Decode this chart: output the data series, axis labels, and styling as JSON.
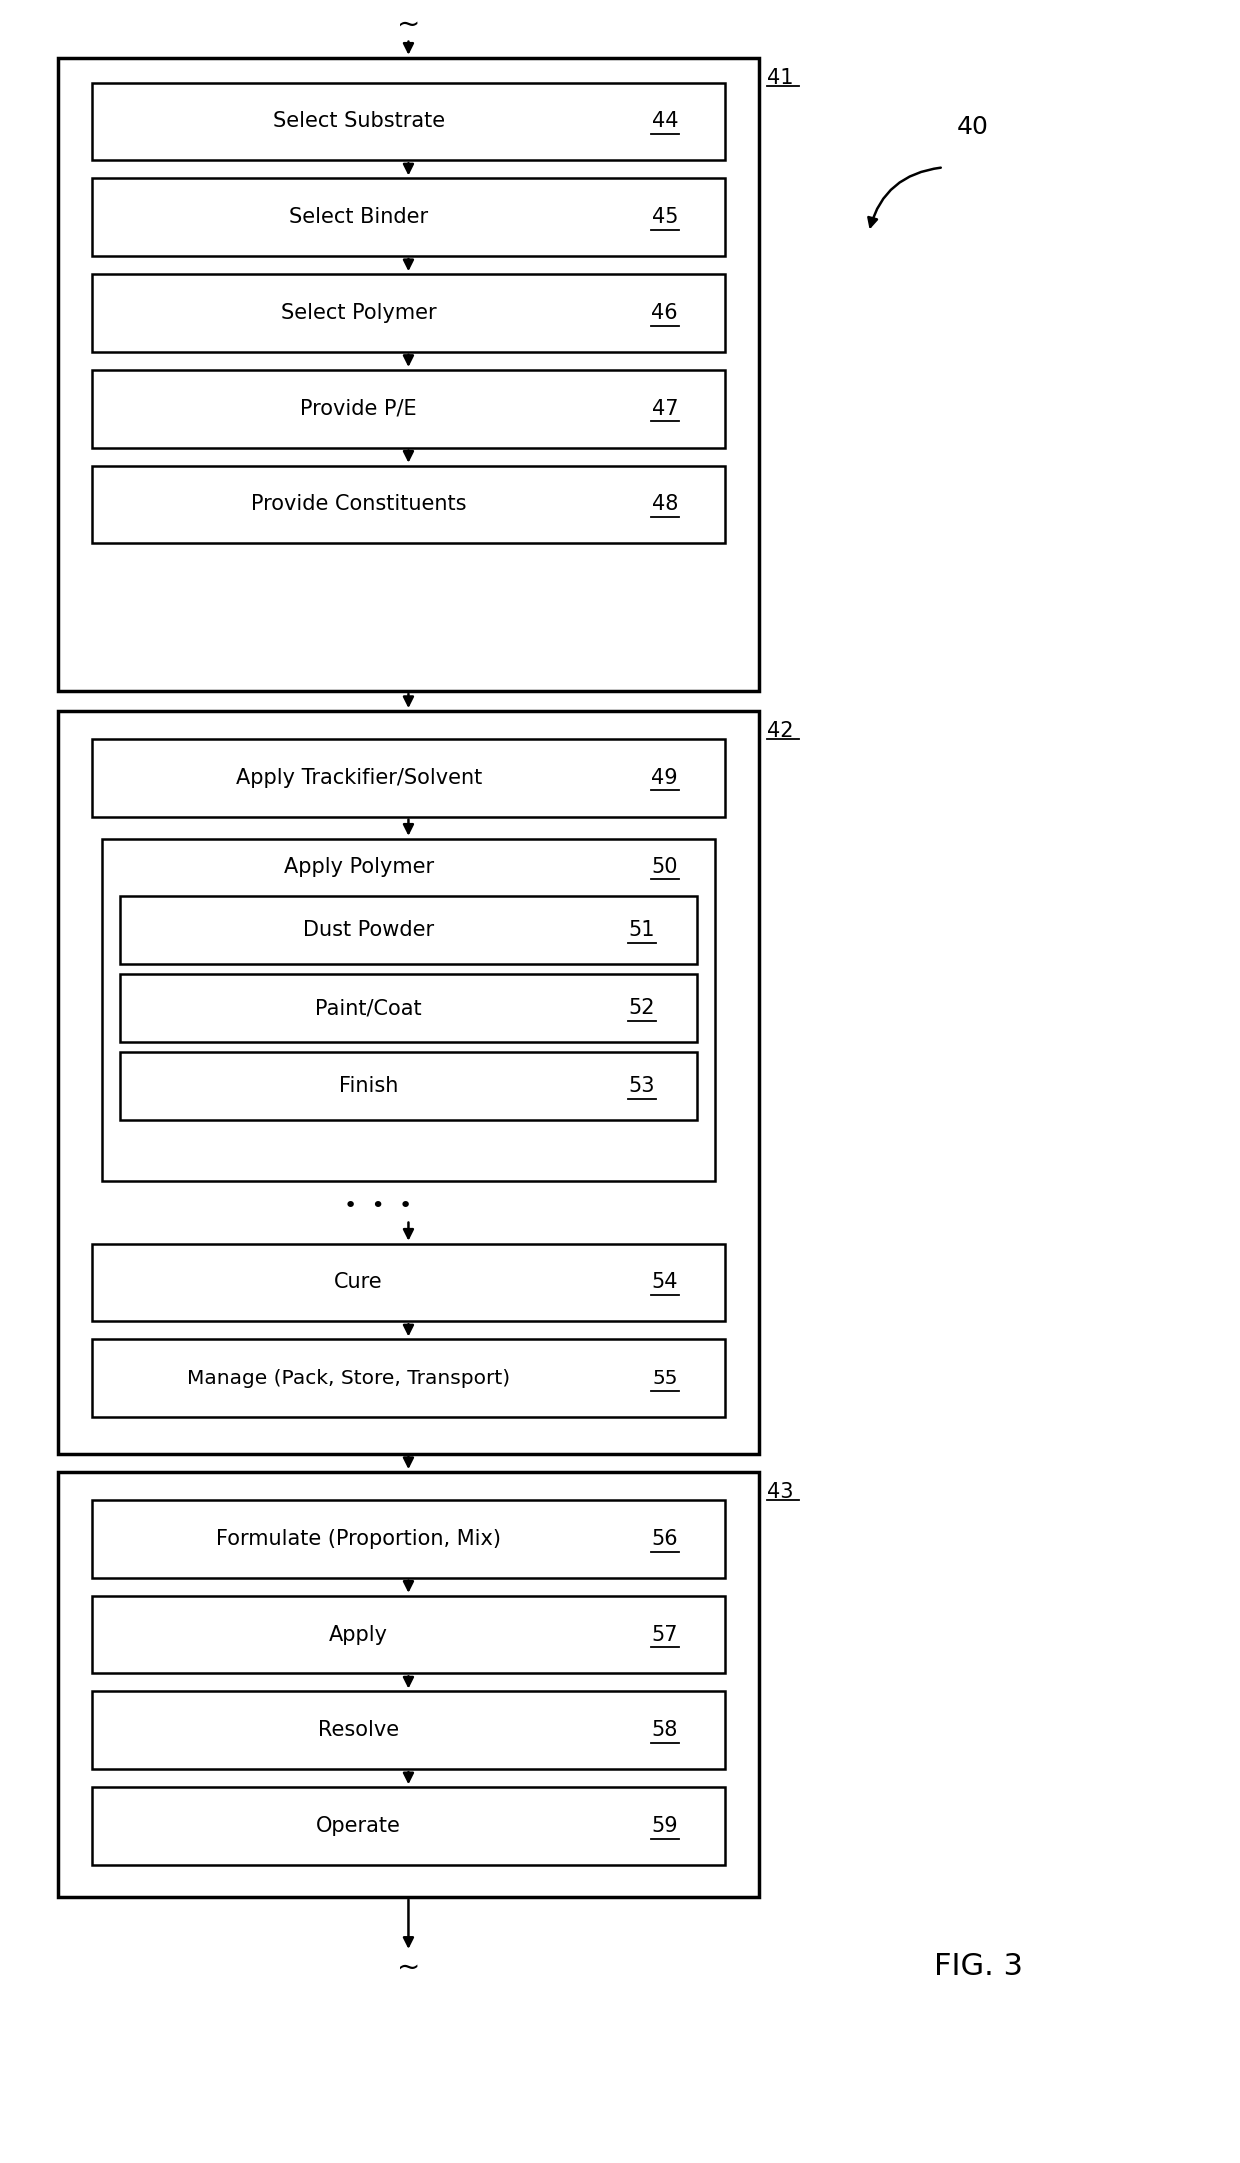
{
  "bg_color": "#ffffff",
  "fig_width": 12.4,
  "fig_height": 21.63,
  "fig_label": "FIG. 3",
  "outer_label": "40",
  "group1_label": "41",
  "group2_label": "42",
  "group3_label": "43",
  "boxes_group1": [
    {
      "text": "Select Substrate",
      "num": "44"
    },
    {
      "text": "Select Binder",
      "num": "45"
    },
    {
      "text": "Select Polymer",
      "num": "46"
    },
    {
      "text": "Provide P/E",
      "num": "47"
    },
    {
      "text": "Provide Constituents",
      "num": "48"
    }
  ],
  "boxes_group2_top": {
    "text": "Apply Trackifier/Solvent",
    "num": "49"
  },
  "boxes_group2_nested_outer": {
    "text": "Apply Polymer",
    "num": "50"
  },
  "boxes_group2_nested_inner": [
    {
      "text": "Dust Powder",
      "num": "51"
    },
    {
      "text": "Paint/Coat",
      "num": "52"
    },
    {
      "text": "Finish",
      "num": "53"
    }
  ],
  "boxes_group2_bottom": [
    {
      "text": "Cure",
      "num": "54"
    },
    {
      "text": "Manage (Pack, Store, Transport)",
      "num": "55"
    }
  ],
  "boxes_group3": [
    {
      "text": "Formulate (Proportion, Mix)",
      "num": "56"
    },
    {
      "text": "Apply",
      "num": "57"
    },
    {
      "text": "Resolve",
      "num": "58"
    },
    {
      "text": "Operate",
      "num": "59"
    }
  ],
  "fontsize": 15,
  "lw_outer": 2.5,
  "lw_inner": 1.8,
  "lw_arrow": 1.8
}
